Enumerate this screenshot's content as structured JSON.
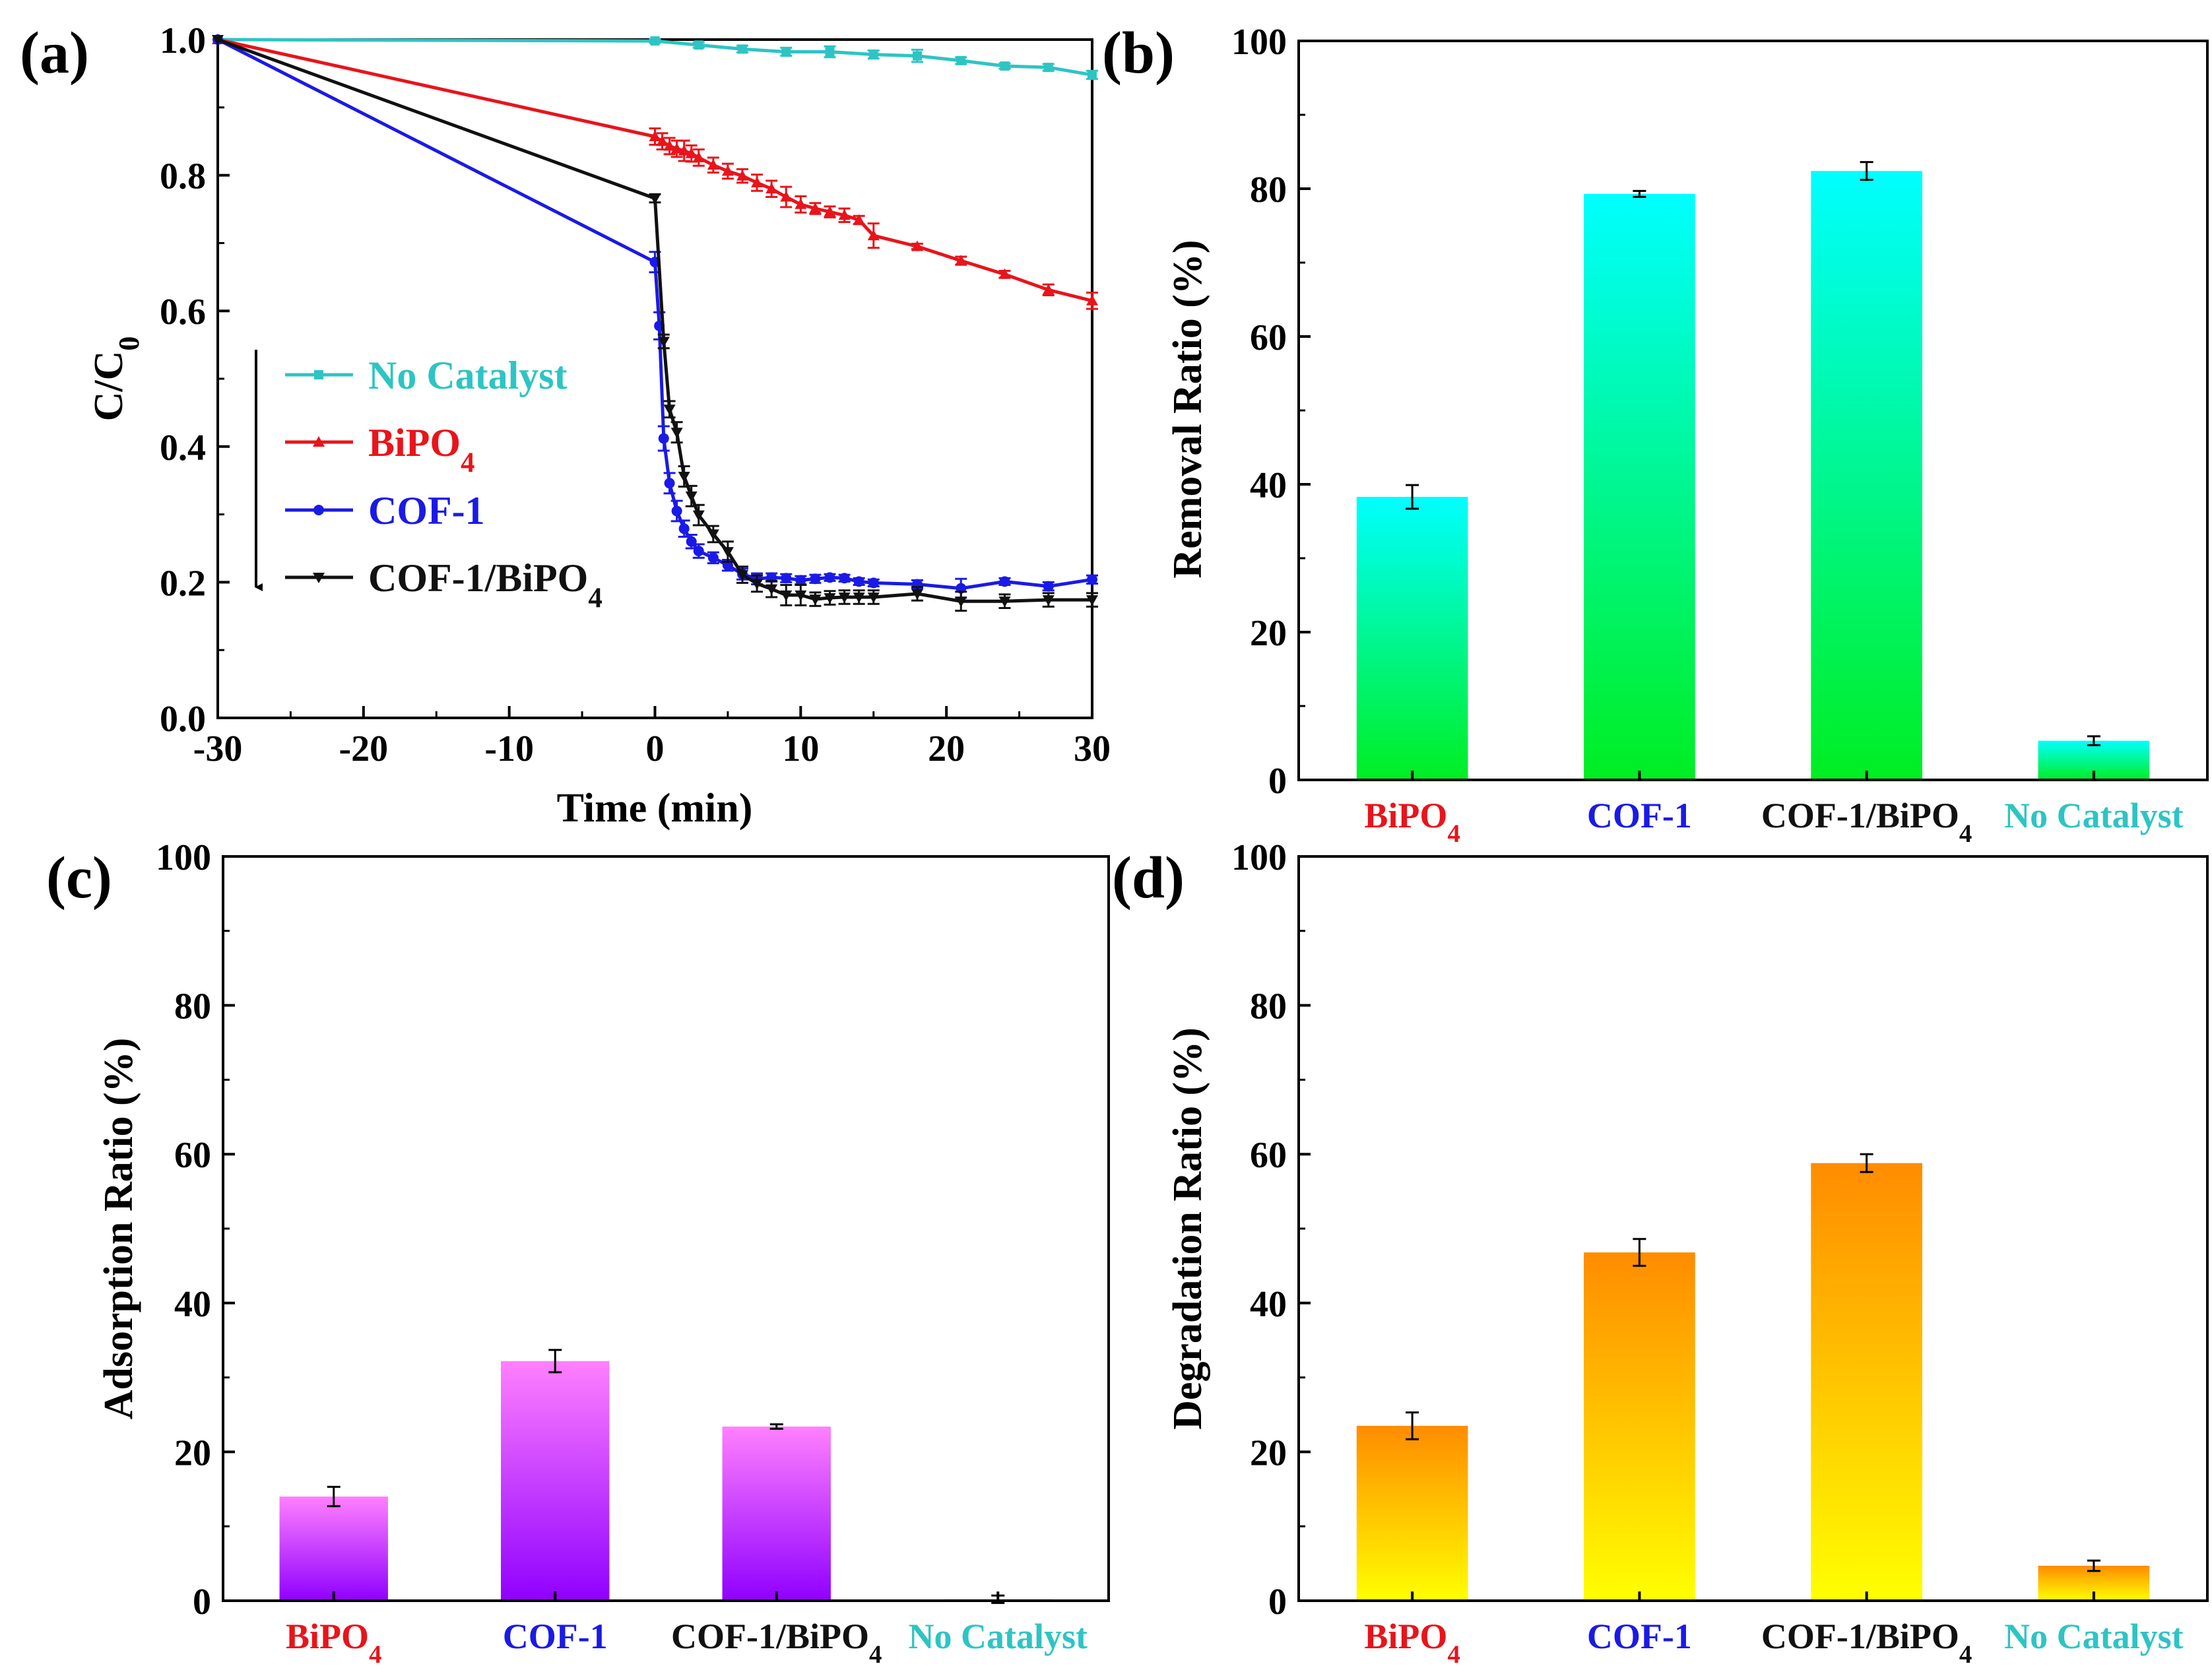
{
  "panels": {
    "a": {
      "label": "(a)"
    },
    "b": {
      "label": "(b)"
    },
    "c": {
      "label": "(c)"
    },
    "d": {
      "label": "(d)"
    }
  },
  "colors": {
    "no_catalyst": "#2ec4c4",
    "bipo4": "#e8141b",
    "cof1": "#1a1ae6",
    "cof1_bipo4": "#111111"
  },
  "chart_data": [
    {
      "id": "a",
      "type": "line",
      "title": "",
      "xlabel": "Time (min)",
      "ylabel": "C/C0",
      "xlim": [
        -30,
        30
      ],
      "ylim": [
        0,
        1.0
      ],
      "xticks": [
        -30,
        -20,
        -10,
        0,
        10,
        20,
        30
      ],
      "yticks": [
        0.0,
        0.2,
        0.4,
        0.6,
        0.8,
        1.0
      ],
      "xtick_labels": [
        "-30",
        "-20",
        "-10",
        "0",
        "10",
        "20",
        "30"
      ],
      "ytick_labels": [
        "0.0",
        "0.2",
        "0.4",
        "0.6",
        "0.8",
        "1.0"
      ],
      "annotation": "arrow pointing down beside the legend",
      "legend": [
        "No Catalyst",
        "BiPO4",
        "COF-1",
        "COF-1/BiPO4"
      ],
      "series": [
        {
          "name": "No Catalyst",
          "marker": "square",
          "x": [
            -30,
            0,
            3,
            6,
            9,
            12,
            15,
            18,
            21,
            24,
            27,
            30
          ],
          "y": [
            1.0,
            0.998,
            0.992,
            0.986,
            0.982,
            0.982,
            0.978,
            0.976,
            0.969,
            0.961,
            0.959,
            0.948
          ],
          "err": [
            0,
            0.003,
            0.004,
            0.005,
            0.006,
            0.008,
            0.006,
            0.009,
            0.005,
            0.004,
            0.005,
            0.006
          ]
        },
        {
          "name": "BiPO4",
          "marker": "triangle-up",
          "x": [
            -30,
            0,
            0.5,
            1,
            1.5,
            2,
            2.5,
            3,
            4,
            5,
            6,
            7,
            8,
            9,
            10,
            11,
            12,
            13,
            14,
            15,
            18,
            21,
            24,
            27,
            30
          ],
          "y": [
            1.0,
            0.857,
            0.85,
            0.843,
            0.839,
            0.836,
            0.832,
            0.826,
            0.815,
            0.806,
            0.799,
            0.789,
            0.78,
            0.768,
            0.757,
            0.751,
            0.746,
            0.741,
            0.734,
            0.711,
            0.695,
            0.674,
            0.654,
            0.631,
            0.615
          ],
          "err": [
            0,
            0.012,
            0.012,
            0.012,
            0.012,
            0.015,
            0.012,
            0.012,
            0.011,
            0.011,
            0.01,
            0.012,
            0.012,
            0.015,
            0.012,
            0.008,
            0.008,
            0.01,
            0.006,
            0.018,
            0.004,
            0.006,
            0.005,
            0.008,
            0.012
          ]
        },
        {
          "name": "COF-1",
          "marker": "circle",
          "x": [
            -30,
            0,
            0.3,
            0.6,
            1,
            1.5,
            2,
            2.5,
            3,
            4,
            5,
            6,
            7,
            8,
            9,
            10,
            11,
            12,
            13,
            14,
            15,
            18,
            21,
            24,
            27,
            30
          ],
          "y": [
            1.0,
            0.672,
            0.578,
            0.412,
            0.346,
            0.305,
            0.279,
            0.26,
            0.246,
            0.236,
            0.225,
            0.212,
            0.205,
            0.207,
            0.206,
            0.203,
            0.205,
            0.207,
            0.206,
            0.201,
            0.199,
            0.197,
            0.191,
            0.201,
            0.194,
            0.204
          ],
          "err": [
            0,
            0.015,
            0.02,
            0.018,
            0.015,
            0.015,
            0.012,
            0.01,
            0.01,
            0.008,
            0.008,
            0.008,
            0.008,
            0.006,
            0.006,
            0.006,
            0.006,
            0.005,
            0.005,
            0.005,
            0.005,
            0.006,
            0.014,
            0.005,
            0.006,
            0.006
          ]
        },
        {
          "name": "COF-1/BiPO4",
          "marker": "triangle-down",
          "x": [
            -30,
            0,
            0.6,
            1,
            1.5,
            2,
            2.5,
            3,
            4,
            5,
            6,
            7,
            8,
            9,
            10,
            11,
            12,
            13,
            14,
            15,
            18,
            21,
            24,
            27,
            30
          ],
          "y": [
            1.0,
            0.766,
            0.555,
            0.455,
            0.421,
            0.356,
            0.327,
            0.299,
            0.271,
            0.245,
            0.211,
            0.198,
            0.19,
            0.181,
            0.181,
            0.175,
            0.177,
            0.178,
            0.178,
            0.178,
            0.183,
            0.172,
            0.172,
            0.174,
            0.174
          ],
          "err": [
            0,
            0.006,
            0.01,
            0.012,
            0.015,
            0.015,
            0.015,
            0.015,
            0.012,
            0.015,
            0.012,
            0.012,
            0.012,
            0.015,
            0.015,
            0.01,
            0.01,
            0.01,
            0.01,
            0.01,
            0.01,
            0.014,
            0.01,
            0.01,
            0.01
          ]
        }
      ]
    },
    {
      "id": "b",
      "type": "bar",
      "title": "",
      "xlabel": "",
      "ylabel": "Removal Ratio (%)",
      "ylim": [
        0,
        100
      ],
      "yticks": [
        0,
        20,
        40,
        60,
        80,
        100
      ],
      "ytick_labels": [
        "0",
        "20",
        "40",
        "60",
        "80",
        "100"
      ],
      "categories": [
        "BiPO4",
        "COF-1",
        "COF-1/BiPO4",
        "No Catalyst"
      ],
      "values": [
        38.3,
        79.3,
        82.4,
        5.3
      ],
      "errors": [
        1.6,
        0.4,
        1.2,
        0.6
      ],
      "bar_gradient": [
        "#00ffff",
        "#00ee22"
      ]
    },
    {
      "id": "c",
      "type": "bar",
      "title": "",
      "xlabel": "",
      "ylabel": "Adsorption Ratio (%)",
      "ylim": [
        0,
        100
      ],
      "yticks": [
        0,
        20,
        40,
        60,
        80,
        100
      ],
      "ytick_labels": [
        "0",
        "20",
        "40",
        "60",
        "80",
        "100"
      ],
      "categories": [
        "BiPO4",
        "COF-1",
        "COF-1/BiPO4",
        "No Catalyst"
      ],
      "values": [
        14.0,
        32.2,
        23.4,
        0.2
      ],
      "errors": [
        1.3,
        1.5,
        0.3,
        0.5
      ],
      "bar_gradient": [
        "#ff80ff",
        "#8f00ff"
      ]
    },
    {
      "id": "d",
      "type": "bar",
      "title": "",
      "xlabel": "",
      "ylabel": "Degradation Ratio (%)",
      "ylim": [
        0,
        100
      ],
      "yticks": [
        0,
        20,
        40,
        60,
        80,
        100
      ],
      "ytick_labels": [
        "0",
        "20",
        "40",
        "60",
        "80",
        "100"
      ],
      "categories": [
        "BiPO4",
        "COF-1",
        "COF-1/BiPO4",
        "No Catalyst"
      ],
      "values": [
        23.5,
        46.8,
        58.8,
        4.7
      ],
      "errors": [
        1.8,
        1.8,
        1.2,
        0.7
      ],
      "bar_gradient": [
        "#ff8c00",
        "#ffff00"
      ]
    }
  ]
}
